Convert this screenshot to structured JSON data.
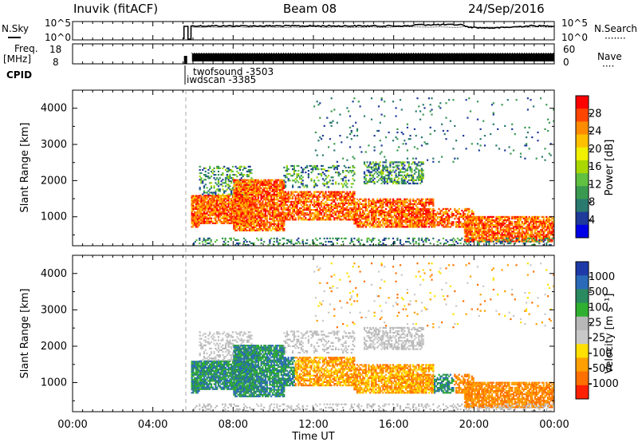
{
  "header": {
    "station": "Inuvik (fitACF)",
    "beam": "Beam 08",
    "date": "24/Sep/2016"
  },
  "labels": {
    "nsky": "N.Sky",
    "nsearch": "N.Search",
    "nsearch_dots": "·······",
    "freq": "Freq.",
    "freq_unit": "[MHz]",
    "nave": "Nave",
    "nave_dots": "····",
    "cpid": "CPID"
  },
  "cpid_annotations": [
    "twofsound -3503",
    "iwdscan -3385"
  ],
  "chart_data": [
    {
      "type": "line",
      "name": "noise-panel",
      "left_ticks": [
        "10^5",
        "10^0"
      ],
      "right_ticks": [
        "10^5",
        "10^0"
      ]
    },
    {
      "type": "line",
      "name": "freq-nave-panel",
      "left_ticks": [
        "18",
        "8"
      ],
      "right_ticks": [
        "60",
        "0"
      ]
    },
    {
      "type": "heatmap",
      "name": "power-panel",
      "ylabel": "Slant Range [km]",
      "yticks": [
        1000,
        2000,
        3000,
        4000
      ],
      "ylim": [
        200,
        4500
      ],
      "colorbar_label": "Power [dB]",
      "colorbar_ticks": [
        "28",
        "24",
        "20",
        "16",
        "12",
        "8",
        "4"
      ],
      "colorbar_colors": [
        "#ff0000",
        "#ff4500",
        "#ff8c00",
        "#ffc000",
        "#f0f000",
        "#a8d800",
        "#60c040",
        "#3a9a50",
        "#2a7a70",
        "#1e3a9a",
        "#0000e6"
      ]
    },
    {
      "type": "heatmap",
      "name": "velocity-panel",
      "ylabel": "Slant Range [km]",
      "yticks": [
        1000,
        2000,
        3000,
        4000
      ],
      "ylim": [
        200,
        4500
      ],
      "colorbar_label": "Velocity [m s⁻¹]",
      "colorbar_ticks": [
        "1000",
        "500",
        "100",
        "25",
        "-25",
        "-100",
        "-500",
        "-1000"
      ],
      "colorbar_colors": [
        "#1e3aa8",
        "#2a6ab8",
        "#2a8a60",
        "#30b030",
        "#b8b8b8",
        "#c8c8c8",
        "#ffe000",
        "#ffa000",
        "#ff7000",
        "#ff2000"
      ],
      "xlabel": "Time UT",
      "xticks": [
        "00:00",
        "04:00",
        "08:00",
        "12:00",
        "16:00",
        "20:00",
        "00:00"
      ]
    }
  ]
}
